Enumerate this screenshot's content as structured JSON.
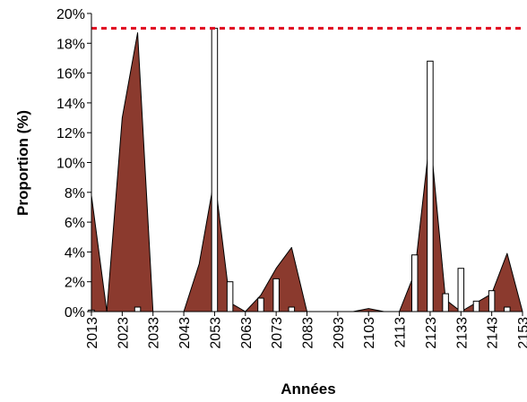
{
  "chart_data": {
    "type": "area",
    "title": "",
    "xlabel": "Années",
    "ylabel": "Proportion (%)",
    "xlim": [
      2013,
      2153
    ],
    "ylim": [
      0,
      20
    ],
    "x_ticks": [
      2013,
      2023,
      2033,
      2043,
      2053,
      2063,
      2073,
      2083,
      2093,
      2103,
      2113,
      2123,
      2133,
      2143,
      2153
    ],
    "y_ticks": [
      0,
      2,
      4,
      6,
      8,
      10,
      12,
      14,
      16,
      18,
      20
    ],
    "y_tick_labels": [
      "0%",
      "2%",
      "4%",
      "6%",
      "8%",
      "10%",
      "12%",
      "14%",
      "16%",
      "18%",
      "20%"
    ],
    "grid": false,
    "legend": "none",
    "series": [
      {
        "kind": "area",
        "color": "#8B3A2E",
        "points": [
          [
            2013,
            7.8
          ],
          [
            2018,
            0
          ],
          [
            2023,
            13.0
          ],
          [
            2028,
            18.7
          ],
          [
            2033,
            0
          ],
          [
            2038,
            0
          ],
          [
            2043,
            0
          ],
          [
            2048,
            3.2
          ],
          [
            2053,
            9.0
          ],
          [
            2058,
            0.6
          ],
          [
            2063,
            0
          ],
          [
            2068,
            1.1
          ],
          [
            2073,
            2.9
          ],
          [
            2078,
            4.3
          ],
          [
            2083,
            0
          ],
          [
            2088,
            0
          ],
          [
            2093,
            0
          ],
          [
            2098,
            0
          ],
          [
            2103,
            0.2
          ],
          [
            2108,
            0
          ],
          [
            2113,
            0
          ],
          [
            2118,
            2.6
          ],
          [
            2123,
            11.8
          ],
          [
            2128,
            0.8
          ],
          [
            2133,
            0
          ],
          [
            2138,
            0.6
          ],
          [
            2143,
            1.2
          ],
          [
            2148,
            3.9
          ],
          [
            2153,
            0
          ]
        ]
      },
      {
        "kind": "bar",
        "color": "#ffffff",
        "points": [
          [
            2013,
            0.1
          ],
          [
            2028,
            0.3
          ],
          [
            2053,
            19.0
          ],
          [
            2058,
            2.0
          ],
          [
            2068,
            0.9
          ],
          [
            2073,
            2.2
          ],
          [
            2078,
            0.3
          ],
          [
            2118,
            3.8
          ],
          [
            2123,
            16.8
          ],
          [
            2128,
            1.2
          ],
          [
            2133,
            2.9
          ],
          [
            2138,
            0.7
          ],
          [
            2143,
            1.4
          ],
          [
            2148,
            0.3
          ]
        ]
      }
    ],
    "reference_line": {
      "y": 19,
      "color": "#E0001B",
      "style": "dashed"
    }
  }
}
